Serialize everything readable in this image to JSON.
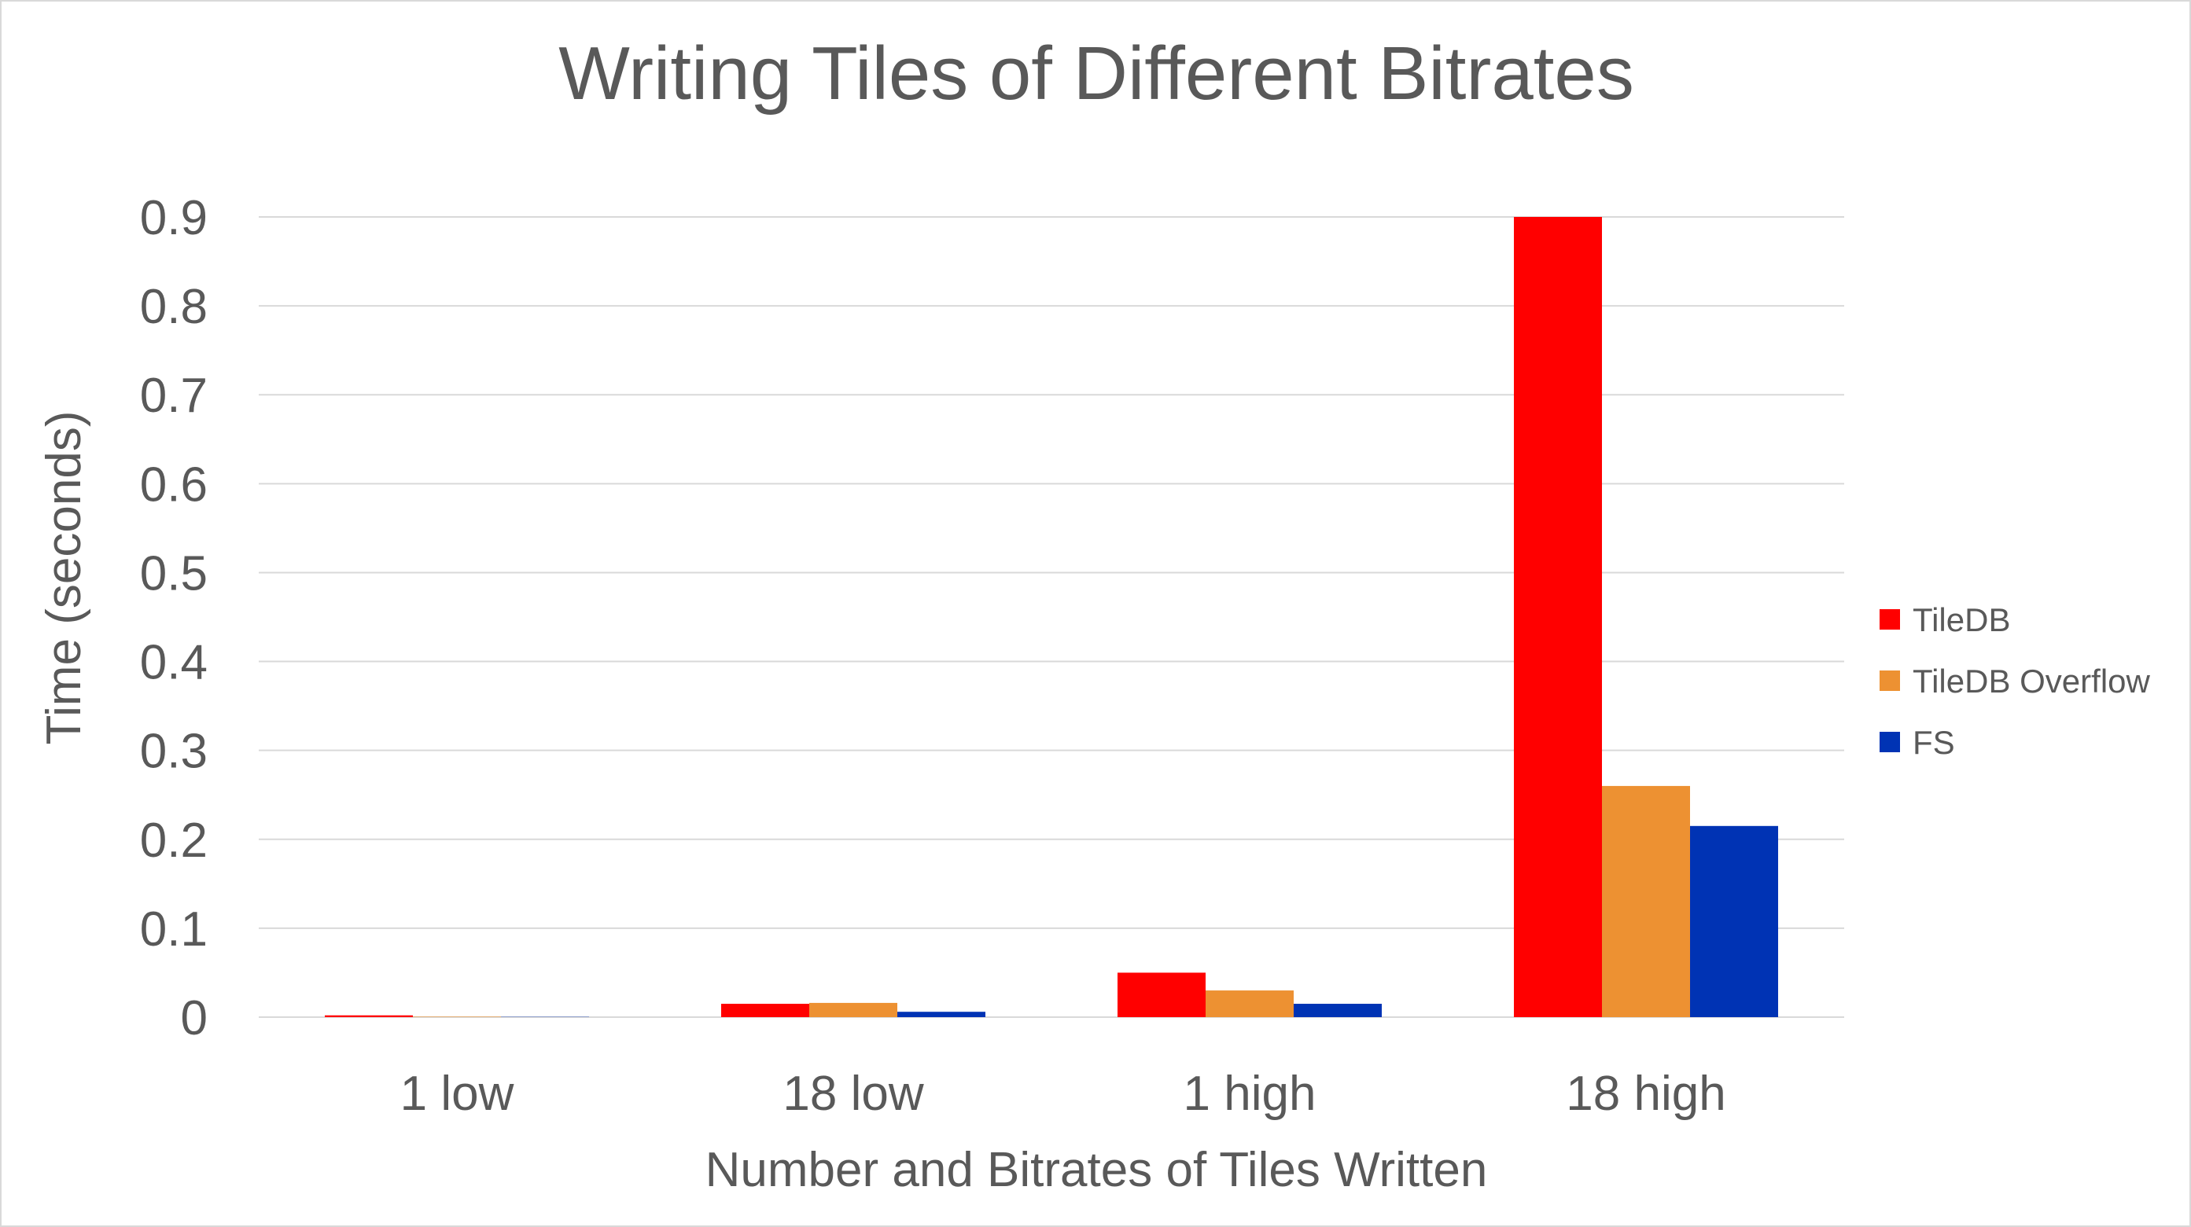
{
  "chart_data": {
    "type": "bar",
    "title": "Writing Tiles of Different Bitrates",
    "xlabel": "Number and Bitrates of Tiles Written",
    "ylabel": "Time (seconds)",
    "categories": [
      "1 low",
      "18 low",
      "1 high",
      "18 high"
    ],
    "ylim": [
      0,
      0.9
    ],
    "yticks": [
      "0",
      "0.1",
      "0.2",
      "0.3",
      "0.4",
      "0.5",
      "0.6",
      "0.7",
      "0.8",
      "0.9"
    ],
    "grid": true,
    "legend_position": "right",
    "series": [
      {
        "name": "TileDB",
        "color": "#ff0000",
        "values": [
          0.002,
          0.015,
          0.05,
          0.9
        ]
      },
      {
        "name": "TileDB Overflow",
        "color": "#ed9132",
        "values": [
          0.0005,
          0.016,
          0.03,
          0.26
        ]
      },
      {
        "name": "FS",
        "color": "#0033b4",
        "values": [
          0.0003,
          0.006,
          0.015,
          0.215
        ]
      }
    ]
  }
}
